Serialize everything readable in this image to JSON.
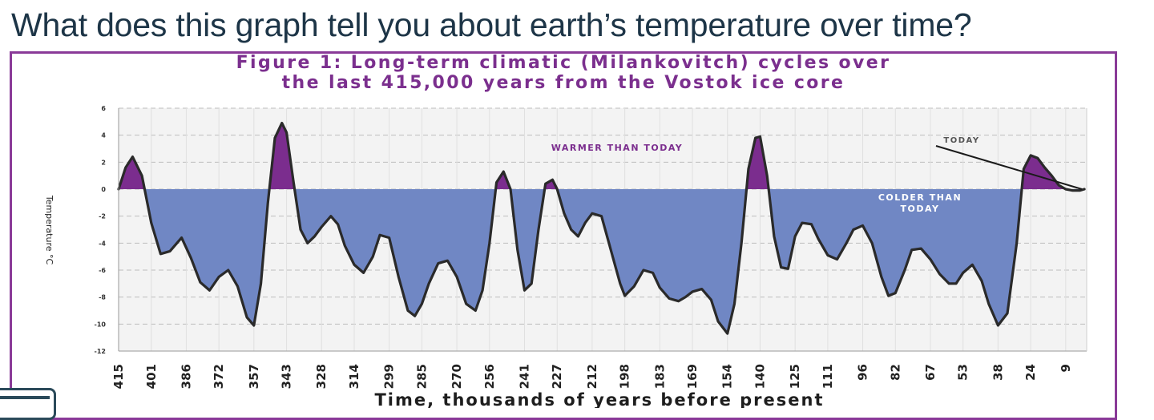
{
  "question": "What does this graph tell you about earth’s temperature over time?",
  "chart_data": {
    "type": "area",
    "title_line1": "Figure 1: Long-term climatic (Milankovitch) cycles over",
    "title_line2": "the last 415,000 years from the Vostok ice core",
    "xlabel": "Time, thousands of years before present",
    "ylabel": "Temperature °C",
    "xlim": [
      415,
      0
    ],
    "ylim": [
      -12,
      6
    ],
    "yticks": [
      "6",
      "4",
      "2",
      "0",
      "-2",
      "-4",
      "-6",
      "-8",
      "-10",
      "-12"
    ],
    "xtick_labels": [
      "415",
      "401",
      "386",
      "372",
      "357",
      "343",
      "328",
      "314",
      "299",
      "285",
      "270",
      "256",
      "241",
      "227",
      "212",
      "198",
      "183",
      "169",
      "154",
      "140",
      "125",
      "111",
      "96",
      "82",
      "67",
      "53",
      "38",
      "24",
      "9"
    ],
    "annotations": {
      "warmer": "WARMER THAN TODAY",
      "colder": "COLDER THAN TODAY",
      "today": "TODAY"
    },
    "grid": true,
    "series": [
      {
        "x": [
          415,
          412,
          409,
          405,
          401,
          397,
          393,
          388,
          384,
          380,
          376,
          372,
          368,
          364,
          360,
          357,
          354,
          351,
          348,
          345,
          343,
          340,
          337,
          334,
          331,
          328,
          324,
          321,
          318,
          314,
          310,
          306,
          303,
          299,
          295,
          291,
          288,
          285,
          282,
          278,
          274,
          270,
          266,
          262,
          259,
          256,
          253,
          250,
          247,
          244,
          241,
          238,
          235,
          232,
          229,
          227,
          224,
          221,
          218,
          215,
          212,
          208,
          204,
          200,
          198,
          194,
          190,
          186,
          183,
          179,
          175,
          172,
          169,
          165,
          161,
          158,
          154,
          151,
          148,
          145,
          142,
          140,
          137,
          134,
          131,
          128,
          125,
          122,
          118,
          115,
          111,
          107,
          103,
          100,
          96,
          92,
          88,
          85,
          82,
          78,
          75,
          71,
          67,
          63,
          59,
          56,
          53,
          49,
          45,
          42,
          38,
          34,
          30,
          27,
          24,
          21,
          18,
          15,
          12,
          9,
          6,
          3,
          1
        ],
        "values": [
          0,
          1.6,
          2.4,
          1,
          -2.5,
          -4.8,
          -4.6,
          -3.6,
          -5.1,
          -6.9,
          -7.5,
          -6.5,
          -6,
          -7.2,
          -9.5,
          -10.1,
          -7,
          -1,
          3.8,
          4.9,
          4.2,
          0.5,
          -3,
          -4,
          -3.5,
          -2.8,
          -2,
          -2.6,
          -4.2,
          -5.6,
          -6.2,
          -5,
          -3.4,
          -3.6,
          -6.5,
          -9,
          -9.4,
          -8.5,
          -7,
          -5.5,
          -5.3,
          -6.5,
          -8.5,
          -9,
          -7.5,
          -4,
          0.5,
          1.3,
          0,
          -4.5,
          -7.5,
          -7,
          -3,
          0.4,
          0.7,
          0,
          -1.8,
          -3,
          -3.5,
          -2.5,
          -1.8,
          -2,
          -4.5,
          -7,
          -7.9,
          -7.2,
          -6,
          -6.2,
          -7.3,
          -8.1,
          -8.3,
          -8,
          -7.6,
          -7.4,
          -8.2,
          -9.8,
          -10.7,
          -8.5,
          -4,
          1.5,
          3.8,
          3.9,
          1,
          -3.5,
          -5.8,
          -5.9,
          -3.5,
          -2.5,
          -2.6,
          -3.7,
          -4.9,
          -5.2,
          -4,
          -3,
          -2.7,
          -4,
          -6.5,
          -7.9,
          -7.7,
          -6,
          -4.5,
          -4.4,
          -5.2,
          -6.3,
          -7,
          -7,
          -6.2,
          -5.6,
          -6.8,
          -8.5,
          -10.1,
          -9.2,
          -4,
          1.5,
          2.5,
          2.3,
          1.6,
          1,
          0.3,
          0,
          -0.1,
          -0.1,
          0
        ]
      }
    ],
    "colors": {
      "warm_fill": "#7b2d8e",
      "cold_fill": "#7087c4",
      "line": "#2a2a2a",
      "plot_bg": "#f3f3f3",
      "frame": "#8a3a98",
      "title": "#7b2f8e",
      "question": "#1d3547"
    }
  }
}
